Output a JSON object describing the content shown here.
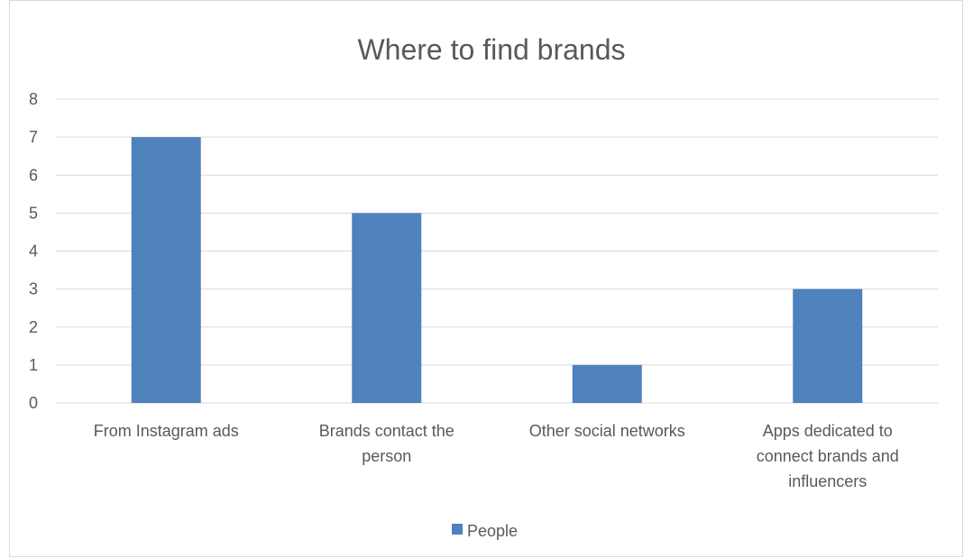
{
  "chart_data": {
    "type": "bar",
    "title": "Where to find brands",
    "categories": [
      "From Instagram ads",
      "Brands contact the person",
      "Other social networks",
      "Apps dedicated to connect brands and influencers"
    ],
    "series": [
      {
        "name": "People",
        "values": [
          7,
          5,
          1,
          3
        ],
        "color": "#4f81bd"
      }
    ],
    "xlabel": "",
    "ylabel": "",
    "ylim": [
      0,
      8
    ],
    "yticks": [
      0,
      1,
      2,
      3,
      4,
      5,
      6,
      7,
      8
    ],
    "grid": true,
    "gridColor": "#d9d9d9",
    "legend": "bottom"
  }
}
